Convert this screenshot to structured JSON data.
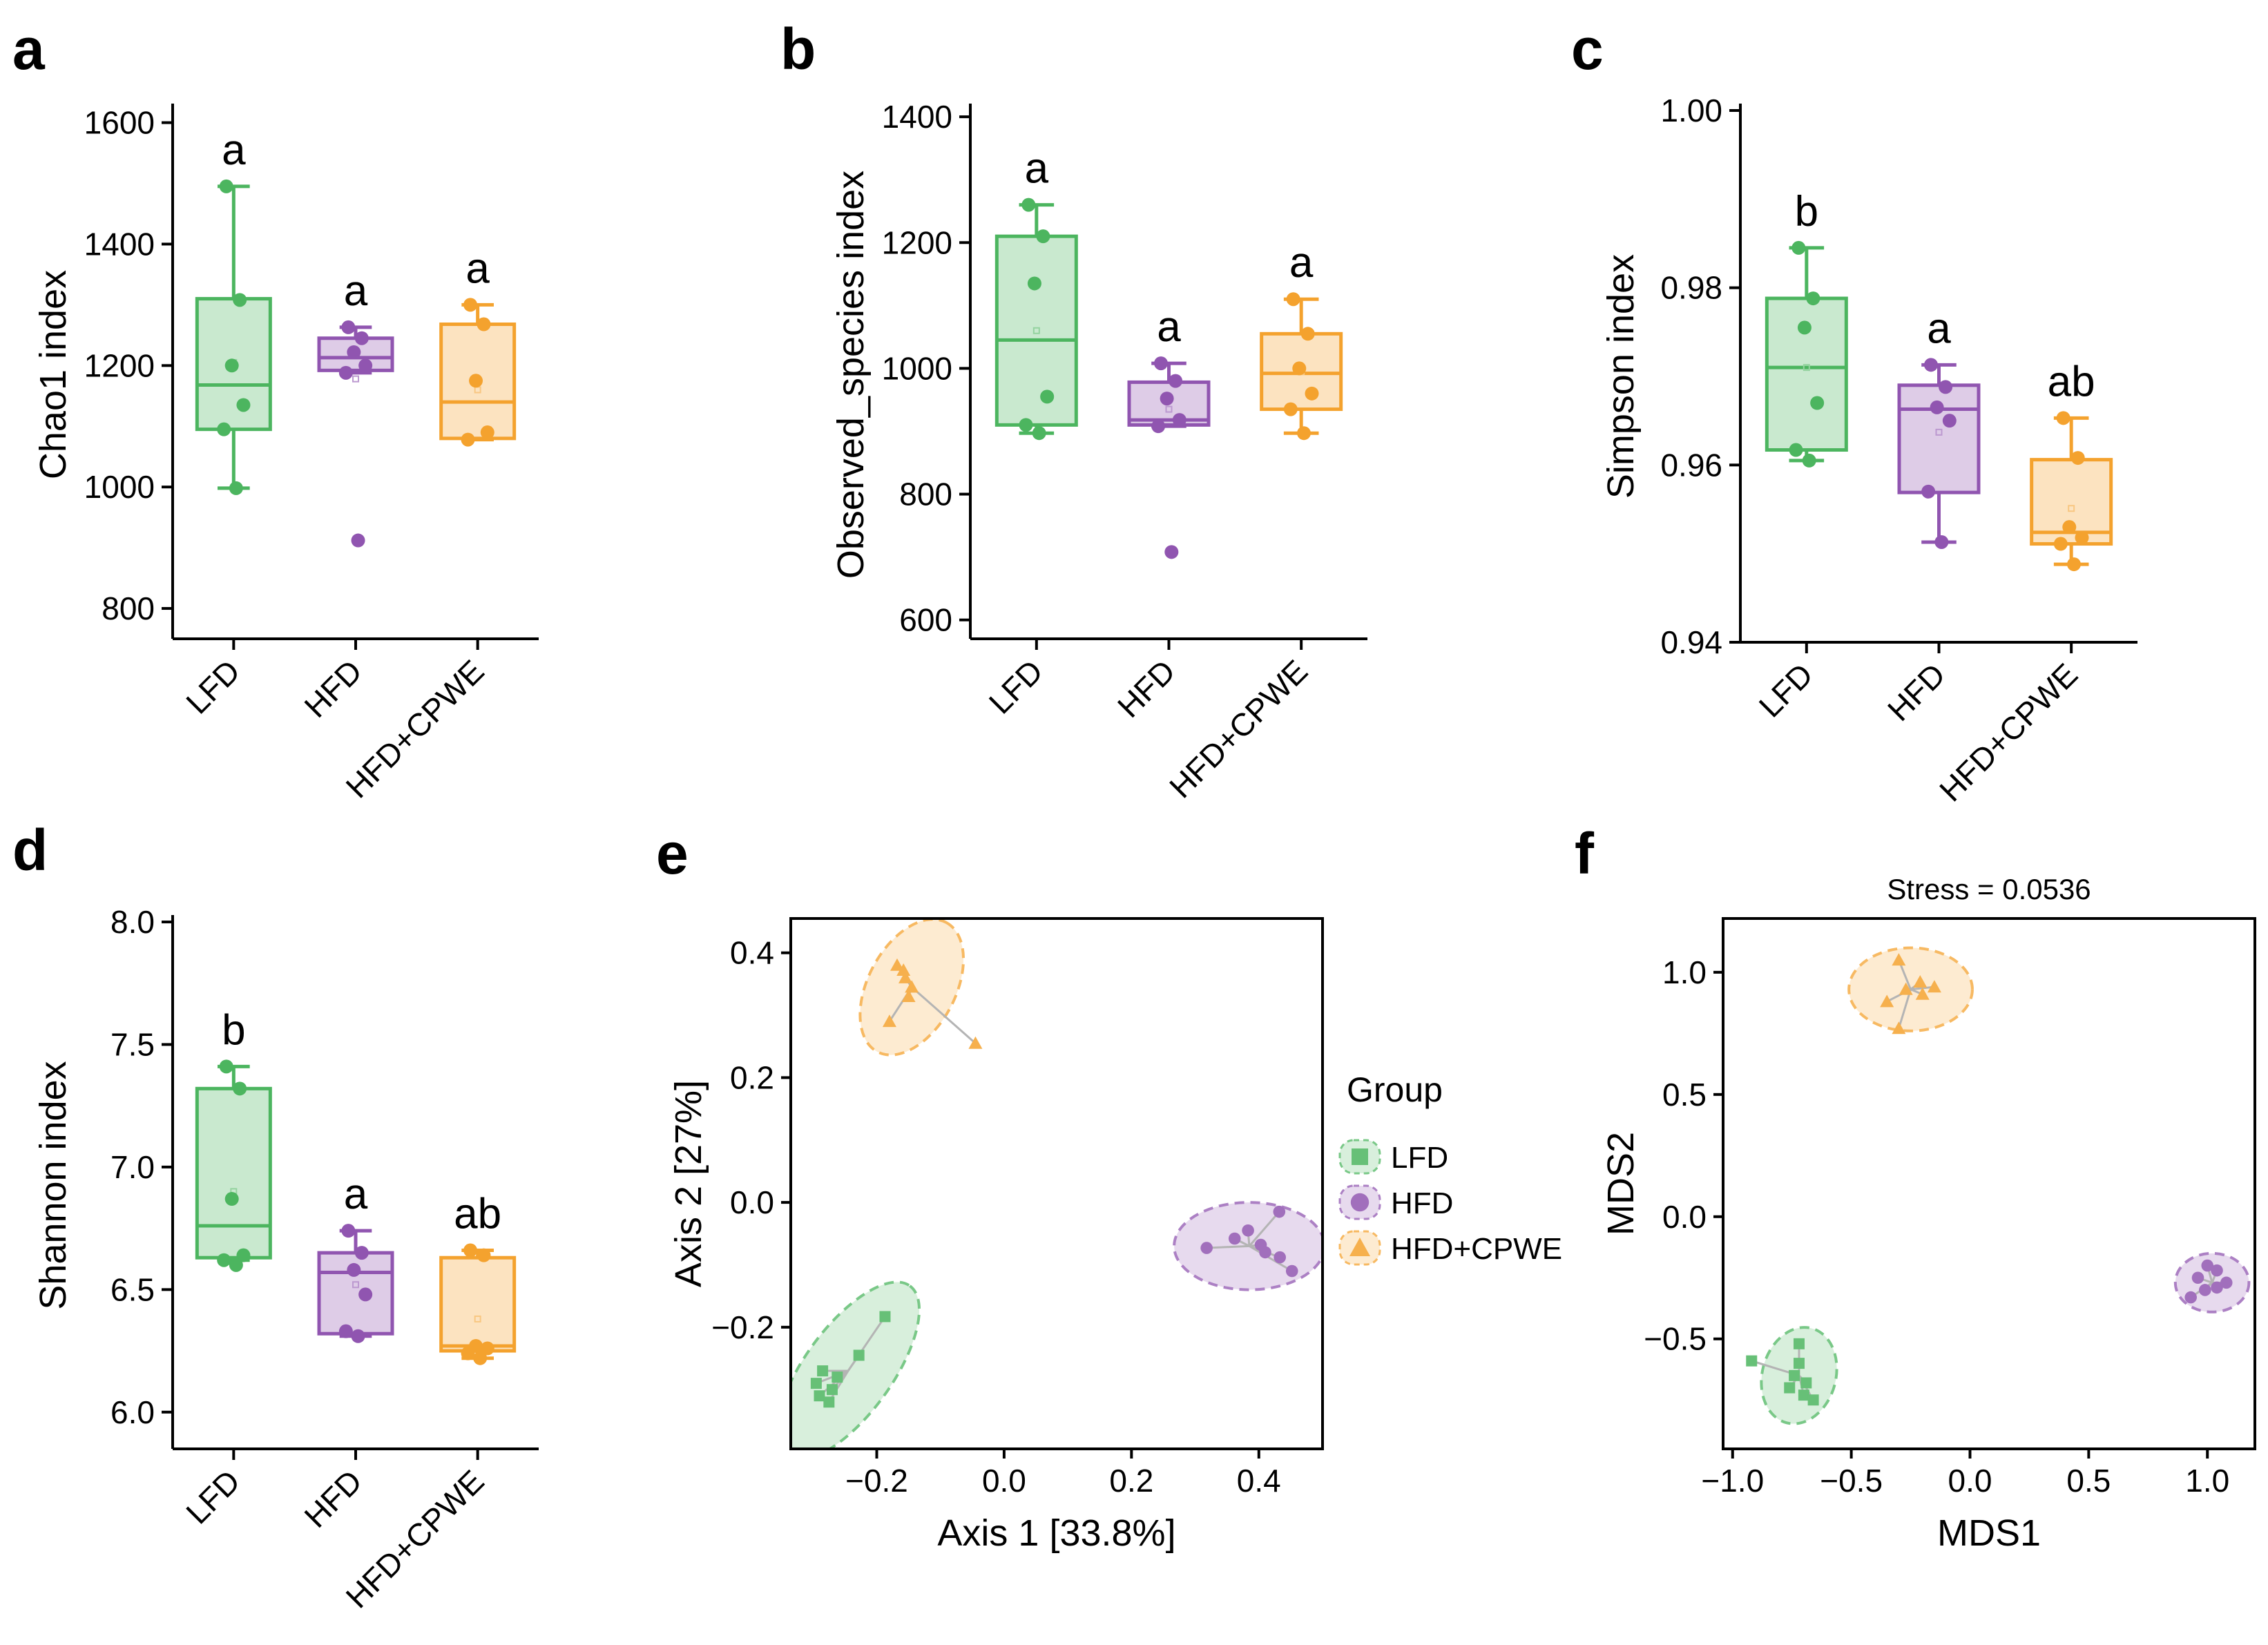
{
  "figure": {
    "panel_letters": [
      "a",
      "b",
      "c",
      "d",
      "e",
      "f"
    ],
    "colors": {
      "LFD": "#4cb55f",
      "HFD": "#9055b0",
      "HFD+CPWE": "#f4a22e",
      "connector": "#b4b4b4"
    },
    "legend": {
      "title": "Group",
      "items": [
        {
          "label": "LFD",
          "shape": "square"
        },
        {
          "label": "HFD",
          "shape": "circle"
        },
        {
          "label": "HFD+CPWE",
          "shape": "triangle"
        }
      ]
    }
  },
  "chart_data": [
    {
      "panel": "a",
      "type": "box",
      "ylabel": "Chao1 index",
      "ylim": [
        750,
        1620
      ],
      "yticks": [
        800,
        1000,
        1200,
        1400,
        1600
      ],
      "categories": [
        "LFD",
        "HFD",
        "HFD+CPWE"
      ],
      "boxes": [
        {
          "group": "LFD",
          "min": 998,
          "q1": 1095,
          "median": 1168,
          "q3": 1310,
          "max": 1495,
          "mean": 1205,
          "letter": "a"
        },
        {
          "group": "HFD",
          "min": 1188,
          "q1": 1192,
          "median": 1213,
          "q3": 1245,
          "max": 1263,
          "mean": 1178,
          "letter": "a"
        },
        {
          "group": "HFD+CPWE",
          "min": 1078,
          "q1": 1080,
          "median": 1140,
          "q3": 1268,
          "max": 1300,
          "mean": 1160,
          "letter": "a"
        }
      ],
      "points": [
        {
          "group": "LFD",
          "values": [
            1495,
            1308,
            1200,
            1135,
            1095,
            998
          ]
        },
        {
          "group": "HFD",
          "values": [
            1263,
            1245,
            1222,
            1200,
            1188,
            912
          ]
        },
        {
          "group": "HFD+CPWE",
          "values": [
            1300,
            1268,
            1175,
            1090,
            1078
          ]
        }
      ]
    },
    {
      "panel": "b",
      "type": "box",
      "ylabel": "Observed_species index",
      "ylim": [
        570,
        1410
      ],
      "yticks": [
        600,
        800,
        1000,
        1200,
        1400
      ],
      "categories": [
        "LFD",
        "HFD",
        "HFD+CPWE"
      ],
      "boxes": [
        {
          "group": "LFD",
          "min": 897,
          "q1": 910,
          "median": 1045,
          "q3": 1210,
          "max": 1260,
          "mean": 1060,
          "letter": "a"
        },
        {
          "group": "HFD",
          "min": 908,
          "q1": 910,
          "median": 918,
          "q3": 978,
          "max": 1008,
          "mean": 935,
          "letter": "a"
        },
        {
          "group": "HFD+CPWE",
          "min": 897,
          "q1": 935,
          "median": 992,
          "q3": 1055,
          "max": 1110,
          "mean": 995,
          "letter": "a"
        }
      ],
      "points": [
        {
          "group": "LFD",
          "values": [
            1260,
            1210,
            1135,
            955,
            910,
            897
          ]
        },
        {
          "group": "HFD",
          "values": [
            1008,
            980,
            952,
            918,
            908,
            708
          ]
        },
        {
          "group": "HFD+CPWE",
          "values": [
            1110,
            1055,
            1000,
            960,
            935,
            897
          ]
        }
      ]
    },
    {
      "panel": "c",
      "type": "box",
      "ylabel": "Simpson index",
      "ylim": [
        0.94,
        1.0
      ],
      "yticks": [
        0.94,
        0.96,
        0.98,
        1.0
      ],
      "ytick_labels": [
        "0.94",
        "0.96",
        "0.98",
        "1.00"
      ],
      "categories": [
        "LFD",
        "HFD",
        "HFD+CPWE"
      ],
      "boxes": [
        {
          "group": "LFD",
          "min": 0.9605,
          "q1": 0.9617,
          "median": 0.971,
          "q3": 0.9788,
          "max": 0.9845,
          "mean": 0.971,
          "letter": "b"
        },
        {
          "group": "HFD",
          "min": 0.9513,
          "q1": 0.9569,
          "median": 0.9663,
          "q3": 0.969,
          "max": 0.9713,
          "mean": 0.9637,
          "letter": "a"
        },
        {
          "group": "HFD+CPWE",
          "min": 0.9488,
          "q1": 0.9511,
          "median": 0.9524,
          "q3": 0.9606,
          "max": 0.9653,
          "mean": 0.9551,
          "letter": "ab"
        }
      ],
      "points": [
        {
          "group": "LFD",
          "values": [
            0.9845,
            0.9788,
            0.9755,
            0.967,
            0.9617,
            0.9605
          ]
        },
        {
          "group": "HFD",
          "values": [
            0.9713,
            0.9688,
            0.9665,
            0.965,
            0.957,
            0.9513
          ]
        },
        {
          "group": "HFD+CPWE",
          "values": [
            0.9653,
            0.9608,
            0.953,
            0.9518,
            0.9511,
            0.9488
          ]
        }
      ]
    },
    {
      "panel": "d",
      "type": "box",
      "ylabel": "Shannon index",
      "ylim": [
        5.85,
        8.0
      ],
      "yticks": [
        6.0,
        6.5,
        7.0,
        7.5,
        8.0
      ],
      "ytick_labels": [
        "6.0",
        "6.5",
        "7.0",
        "7.5",
        "8.0"
      ],
      "categories": [
        "LFD",
        "HFD",
        "HFD+CPWE"
      ],
      "boxes": [
        {
          "group": "LFD",
          "min": 6.62,
          "q1": 6.63,
          "median": 6.76,
          "q3": 7.32,
          "max": 7.41,
          "mean": 6.9,
          "letter": "b"
        },
        {
          "group": "HFD",
          "min": 6.31,
          "q1": 6.32,
          "median": 6.57,
          "q3": 6.65,
          "max": 6.74,
          "mean": 6.52,
          "letter": "a"
        },
        {
          "group": "HFD+CPWE",
          "min": 6.22,
          "q1": 6.25,
          "median": 6.27,
          "q3": 6.63,
          "max": 6.66,
          "mean": 6.38,
          "letter": "ab"
        }
      ],
      "points": [
        {
          "group": "LFD",
          "values": [
            7.41,
            7.32,
            6.87,
            6.64,
            6.62,
            6.6
          ]
        },
        {
          "group": "HFD",
          "values": [
            6.74,
            6.65,
            6.58,
            6.48,
            6.33,
            6.31
          ]
        },
        {
          "group": "HFD+CPWE",
          "values": [
            6.66,
            6.64,
            6.27,
            6.26,
            6.24,
            6.22
          ]
        }
      ]
    },
    {
      "panel": "e",
      "type": "scatter",
      "xlabel": "Axis 1 [33.8%]",
      "ylabel": "Axis 2 [27%]",
      "xlim": [
        -0.335,
        0.5
      ],
      "ylim": [
        -0.395,
        0.455
      ],
      "xticks": [
        -0.2,
        0.0,
        0.2,
        0.4
      ],
      "xtick_labels": [
        "−0.2",
        "0.0",
        "0.2",
        "0.4"
      ],
      "yticks": [
        -0.2,
        0.0,
        0.2,
        0.4
      ],
      "ytick_labels": [
        "−0.2",
        "0.0",
        "0.2",
        "0.4"
      ],
      "series": [
        {
          "name": "LFD",
          "marker": "square",
          "centroid": [
            -0.245,
            -0.27
          ],
          "ellipse": {
            "rx": 0.165,
            "ry": 0.07,
            "angle_deg": 54
          },
          "points": [
            [
              -0.187,
              -0.183
            ],
            [
              -0.228,
              -0.245
            ],
            [
              -0.262,
              -0.28
            ],
            [
              -0.285,
              -0.27
            ],
            [
              -0.295,
              -0.29
            ],
            [
              -0.27,
              -0.3
            ],
            [
              -0.29,
              -0.31
            ],
            [
              -0.275,
              -0.32
            ]
          ]
        },
        {
          "name": "HFD",
          "marker": "circle",
          "centroid": [
            0.385,
            -0.07
          ],
          "ellipse": {
            "rx": 0.118,
            "ry": 0.07,
            "angle_deg": 0
          },
          "points": [
            [
              0.432,
              -0.015
            ],
            [
              0.383,
              -0.045
            ],
            [
              0.362,
              -0.058
            ],
            [
              0.318,
              -0.073
            ],
            [
              0.403,
              -0.068
            ],
            [
              0.433,
              -0.088
            ],
            [
              0.452,
              -0.11
            ],
            [
              0.41,
              -0.08
            ]
          ]
        },
        {
          "name": "HFD+CPWE",
          "marker": "triangle",
          "centroid": [
            -0.145,
            0.345
          ],
          "ellipse": {
            "rx": 0.115,
            "ry": 0.07,
            "angle_deg": 62
          },
          "points": [
            [
              -0.168,
              0.38
            ],
            [
              -0.158,
              0.372
            ],
            [
              -0.155,
              0.36
            ],
            [
              -0.145,
              0.345
            ],
            [
              -0.15,
              0.33
            ],
            [
              -0.18,
              0.29
            ],
            [
              -0.045,
              0.255
            ]
          ]
        }
      ]
    },
    {
      "panel": "f",
      "type": "scatter",
      "title": "Stress = 0.0536",
      "xlabel": "MDS1",
      "ylabel": "MDS2",
      "xlim": [
        -1.04,
        1.2
      ],
      "ylim": [
        -0.95,
        1.22
      ],
      "xticks": [
        -1.0,
        -0.5,
        0.0,
        0.5,
        1.0
      ],
      "xtick_labels": [
        "−1.0",
        "−0.5",
        "0.0",
        "0.5",
        "1.0"
      ],
      "yticks": [
        -0.5,
        0.0,
        0.5,
        1.0
      ],
      "ytick_labels": [
        "−0.5",
        "0.0",
        "0.5",
        "1.0"
      ],
      "series": [
        {
          "name": "LFD",
          "marker": "square",
          "centroid": [
            -0.72,
            -0.65
          ],
          "ellipse": {
            "rx": 0.155,
            "ry": 0.2,
            "angle_deg": -15
          },
          "points": [
            [
              -0.92,
              -0.59
            ],
            [
              -0.72,
              -0.52
            ],
            [
              -0.72,
              -0.6
            ],
            [
              -0.74,
              -0.65
            ],
            [
              -0.69,
              -0.68
            ],
            [
              -0.76,
              -0.7
            ],
            [
              -0.7,
              -0.73
            ],
            [
              -0.66,
              -0.75
            ]
          ]
        },
        {
          "name": "HFD",
          "marker": "circle",
          "centroid": [
            1.02,
            -0.27
          ],
          "ellipse": {
            "rx": 0.155,
            "ry": 0.12,
            "angle_deg": 0
          },
          "points": [
            [
              1.0,
              -0.2
            ],
            [
              1.04,
              -0.22
            ],
            [
              0.96,
              -0.25
            ],
            [
              1.08,
              -0.27
            ],
            [
              0.99,
              -0.3
            ],
            [
              1.04,
              -0.29
            ],
            [
              0.93,
              -0.33
            ]
          ]
        },
        {
          "name": "HFD+CPWE",
          "marker": "triangle",
          "centroid": [
            -0.25,
            0.93
          ],
          "ellipse": {
            "rx": 0.26,
            "ry": 0.17,
            "angle_deg": 0
          },
          "points": [
            [
              -0.3,
              1.05
            ],
            [
              -0.21,
              0.96
            ],
            [
              -0.27,
              0.93
            ],
            [
              -0.2,
              0.91
            ],
            [
              -0.15,
              0.94
            ],
            [
              -0.35,
              0.88
            ],
            [
              -0.3,
              0.77
            ]
          ]
        }
      ]
    }
  ]
}
